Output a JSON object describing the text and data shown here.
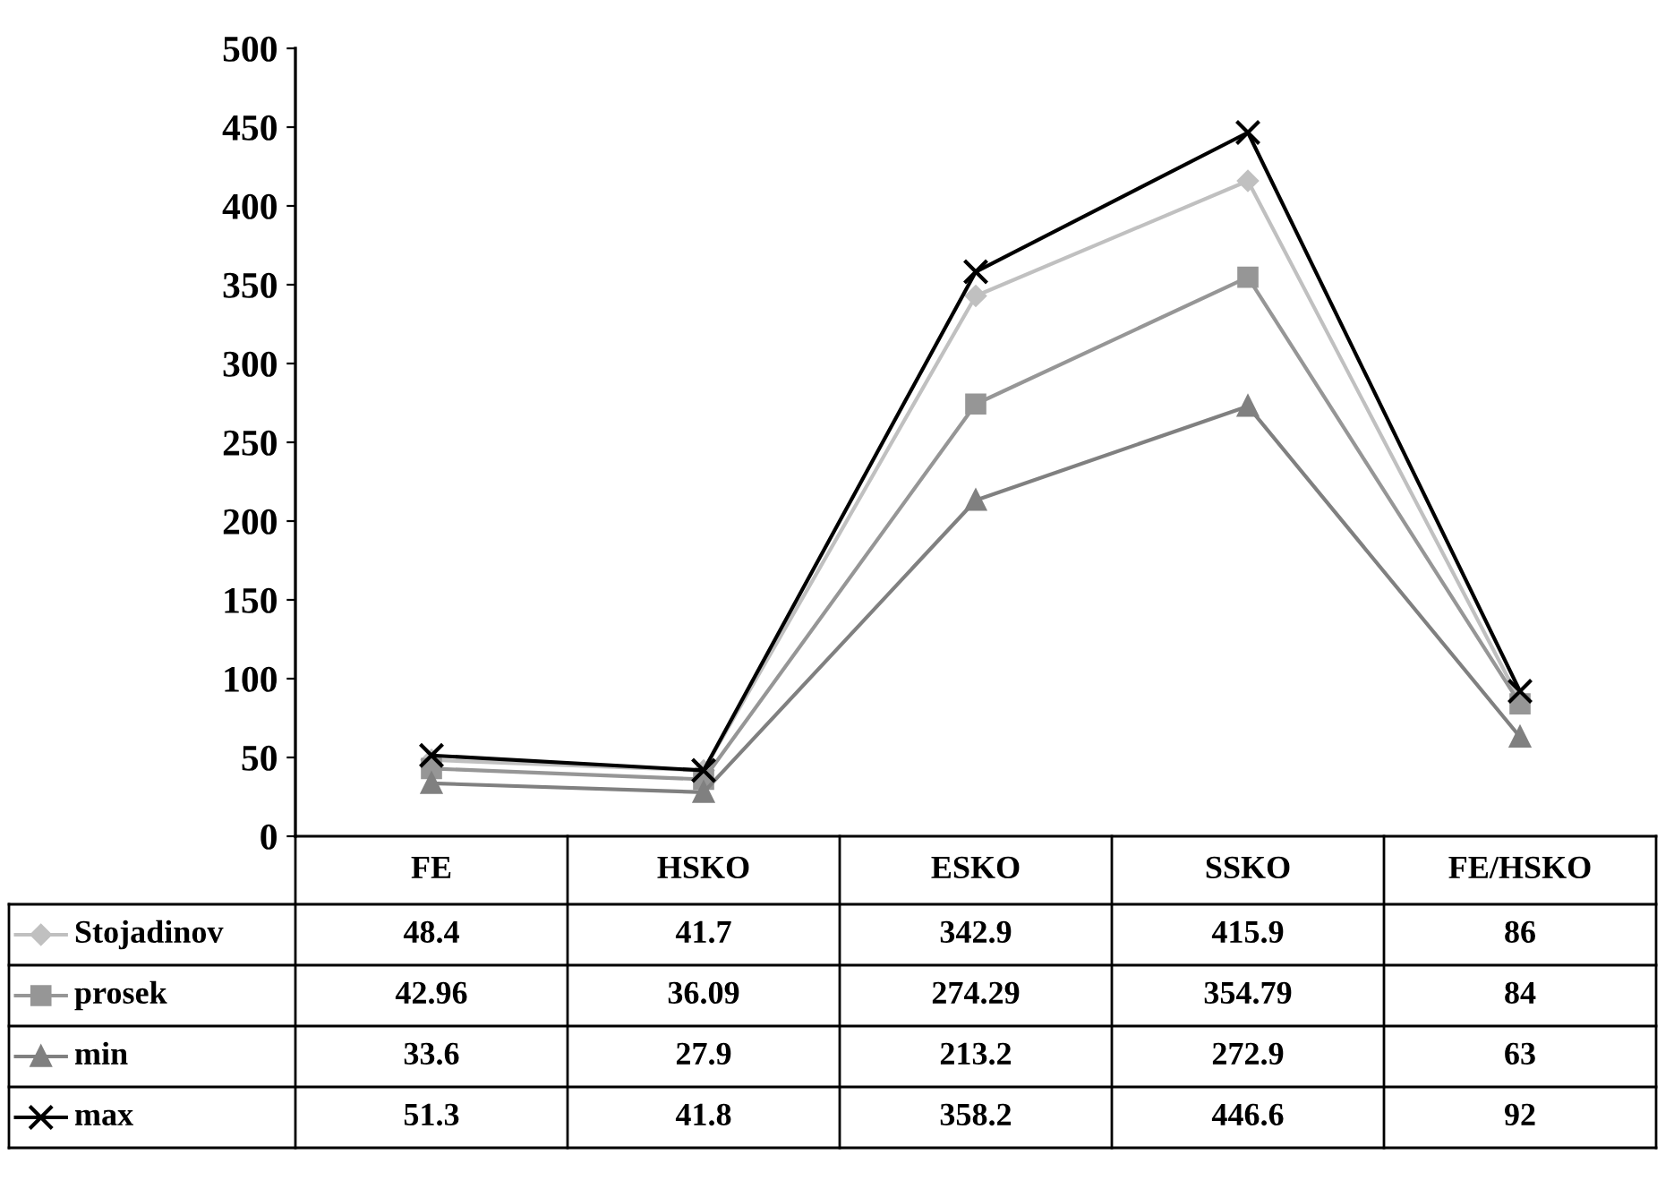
{
  "chart_data": {
    "type": "line",
    "categories": [
      "FE",
      "HSKO",
      "ESKO",
      "SSKO",
      "FE/HSKO"
    ],
    "series": [
      {
        "name": "Stojadinov",
        "color": "#c0c0c0",
        "marker": "diamond",
        "values": [
          48.4,
          41.7,
          342.9,
          415.9,
          86
        ]
      },
      {
        "name": "prosek",
        "color": "#969696",
        "marker": "square",
        "values": [
          42.96,
          36.09,
          274.29,
          354.79,
          84
        ]
      },
      {
        "name": "min",
        "color": "#808080",
        "marker": "triangle",
        "values": [
          33.6,
          27.9,
          213.2,
          272.9,
          63
        ]
      },
      {
        "name": "max",
        "color": "#000000",
        "marker": "cross",
        "values": [
          51.3,
          41.8,
          358.2,
          446.6,
          92
        ]
      }
    ],
    "ylim": [
      0,
      500
    ],
    "yticks": [
      0,
      50,
      100,
      150,
      200,
      250,
      300,
      350,
      400,
      450,
      500
    ],
    "grid": false,
    "data_labels": true,
    "legend": "bottom left"
  }
}
